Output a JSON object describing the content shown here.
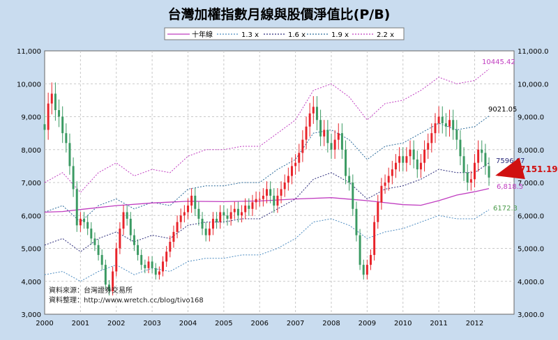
{
  "chart_data": {
    "type": "candlestick",
    "title": "台灣加權指數月線與股價淨值比(P/B)",
    "x_ticks": [
      "2000",
      "2001",
      "2002",
      "2003",
      "2004",
      "2005",
      "2006",
      "2007",
      "2008",
      "2009",
      "2010",
      "2011",
      "2012"
    ],
    "y_ticks_left": [
      "3,000",
      "4,000",
      "5,000",
      "6,000",
      "7,000",
      "8,000",
      "9,000",
      "10,000",
      "11,000"
    ],
    "y_ticks_right": [
      "3,000.0",
      "4,000.0",
      "5,000.0",
      "6,000.0",
      "7,000.0",
      "8,000.0",
      "9,000.0",
      "10,000.0",
      "11,000.0"
    ],
    "ylim": [
      3000,
      11000
    ],
    "xlim": [
      2000,
      2013.1
    ],
    "grid": true,
    "legend": {
      "position": "top",
      "items": [
        {
          "name": "十年線",
          "color": "#c03cc0",
          "style": "solid"
        },
        {
          "name": "1.3 x",
          "color": "#4a8ac0",
          "style": "dotted"
        },
        {
          "name": "1.6 x",
          "color": "#2a2a7a",
          "style": "dotted"
        },
        {
          "name": "1.9 x",
          "color": "#2a6a9a",
          "style": "dotted"
        },
        {
          "name": "2.2 x",
          "color": "#c03cc0",
          "style": "dotted"
        }
      ]
    },
    "ten_year_line": [
      [
        2000,
        6100
      ],
      [
        2000.5,
        6120
      ],
      [
        2001,
        6180
      ],
      [
        2002,
        6300
      ],
      [
        2003,
        6380
      ],
      [
        2004,
        6430
      ],
      [
        2005,
        6420
      ],
      [
        2006,
        6440
      ],
      [
        2007,
        6500
      ],
      [
        2008,
        6540
      ],
      [
        2009,
        6450
      ],
      [
        2010,
        6330
      ],
      [
        2010.5,
        6310
      ],
      [
        2011,
        6450
      ],
      [
        2011.5,
        6620
      ],
      [
        2012,
        6720
      ],
      [
        2012.4,
        6818.5
      ]
    ],
    "pb_bands": [
      {
        "name": "1.3 x",
        "color": "#4a8ac0",
        "points": [
          [
            2000,
            4200
          ],
          [
            2000.5,
            4300
          ],
          [
            2001,
            4000
          ],
          [
            2001.5,
            4300
          ],
          [
            2002,
            4500
          ],
          [
            2002.5,
            4200
          ],
          [
            2003,
            4400
          ],
          [
            2003.5,
            4300
          ],
          [
            2004,
            4600
          ],
          [
            2004.5,
            4700
          ],
          [
            2005,
            4700
          ],
          [
            2005.5,
            4800
          ],
          [
            2006,
            4800
          ],
          [
            2006.5,
            5000
          ],
          [
            2007,
            5300
          ],
          [
            2007.5,
            5800
          ],
          [
            2008,
            5900
          ],
          [
            2008.5,
            5700
          ],
          [
            2009,
            5300
          ],
          [
            2009.5,
            5500
          ],
          [
            2010,
            5600
          ],
          [
            2010.5,
            5800
          ],
          [
            2011,
            6000
          ],
          [
            2011.5,
            5900
          ],
          [
            2012,
            5900
          ],
          [
            2012.4,
            6172.3
          ]
        ]
      },
      {
        "name": "1.6 x",
        "color": "#2a2a7a",
        "points": [
          [
            2000,
            5100
          ],
          [
            2000.5,
            5300
          ],
          [
            2001,
            4900
          ],
          [
            2001.5,
            5300
          ],
          [
            2002,
            5500
          ],
          [
            2002.5,
            5200
          ],
          [
            2003,
            5400
          ],
          [
            2003.5,
            5300
          ],
          [
            2004,
            5700
          ],
          [
            2004.5,
            5800
          ],
          [
            2005,
            5800
          ],
          [
            2005.5,
            5900
          ],
          [
            2006,
            5900
          ],
          [
            2006.5,
            6200
          ],
          [
            2007,
            6500
          ],
          [
            2007.5,
            7100
          ],
          [
            2008,
            7300
          ],
          [
            2008.5,
            7000
          ],
          [
            2009,
            6500
          ],
          [
            2009.5,
            6800
          ],
          [
            2010,
            6900
          ],
          [
            2010.5,
            7100
          ],
          [
            2011,
            7400
          ],
          [
            2011.5,
            7300
          ],
          [
            2012,
            7300
          ],
          [
            2012.4,
            7596.67
          ]
        ]
      },
      {
        "name": "1.9 x",
        "color": "#2a6a9a",
        "points": [
          [
            2000,
            6100
          ],
          [
            2000.5,
            6300
          ],
          [
            2001,
            5800
          ],
          [
            2001.5,
            6300
          ],
          [
            2002,
            6500
          ],
          [
            2002.5,
            6200
          ],
          [
            2003,
            6400
          ],
          [
            2003.5,
            6300
          ],
          [
            2004,
            6800
          ],
          [
            2004.5,
            6900
          ],
          [
            2005,
            6900
          ],
          [
            2005.5,
            7000
          ],
          [
            2006,
            7000
          ],
          [
            2006.5,
            7400
          ],
          [
            2007,
            7700
          ],
          [
            2007.5,
            8500
          ],
          [
            2008,
            8600
          ],
          [
            2008.5,
            8300
          ],
          [
            2009,
            7700
          ],
          [
            2009.5,
            8100
          ],
          [
            2010,
            8200
          ],
          [
            2010.5,
            8500
          ],
          [
            2011,
            8800
          ],
          [
            2011.5,
            8600
          ],
          [
            2012,
            8700
          ],
          [
            2012.4,
            9021.05
          ]
        ]
      },
      {
        "name": "2.2 x",
        "color": "#c03cc0",
        "points": [
          [
            2000,
            7000
          ],
          [
            2000.5,
            7300
          ],
          [
            2001,
            6700
          ],
          [
            2001.5,
            7300
          ],
          [
            2002,
            7600
          ],
          [
            2002.5,
            7200
          ],
          [
            2003,
            7400
          ],
          [
            2003.5,
            7300
          ],
          [
            2004,
            7800
          ],
          [
            2004.5,
            8000
          ],
          [
            2005,
            8000
          ],
          [
            2005.5,
            8100
          ],
          [
            2006,
            8100
          ],
          [
            2006.5,
            8500
          ],
          [
            2007,
            8900
          ],
          [
            2007.5,
            9800
          ],
          [
            2008,
            10000
          ],
          [
            2008.5,
            9600
          ],
          [
            2009,
            8900
          ],
          [
            2009.5,
            9400
          ],
          [
            2010,
            9500
          ],
          [
            2010.5,
            9800
          ],
          [
            2011,
            10200
          ],
          [
            2011.5,
            10000
          ],
          [
            2012,
            10100
          ],
          [
            2012.4,
            10445.42
          ]
        ]
      }
    ],
    "monthly_close": [
      [
        2000.0,
        8600
      ],
      [
        2000.1,
        9400
      ],
      [
        2000.2,
        9700
      ],
      [
        2000.3,
        9200
      ],
      [
        2000.4,
        9000
      ],
      [
        2000.5,
        8500
      ],
      [
        2000.6,
        8200
      ],
      [
        2000.7,
        7500
      ],
      [
        2000.8,
        6800
      ],
      [
        2000.9,
        5700
      ],
      [
        2001.0,
        5900
      ],
      [
        2001.1,
        5800
      ],
      [
        2001.2,
        5600
      ],
      [
        2001.3,
        5300
      ],
      [
        2001.4,
        5100
      ],
      [
        2001.5,
        4800
      ],
      [
        2001.6,
        4500
      ],
      [
        2001.7,
        3900
      ],
      [
        2001.8,
        3700
      ],
      [
        2001.9,
        4300
      ],
      [
        2002.0,
        5000
      ],
      [
        2002.1,
        5600
      ],
      [
        2002.2,
        6100
      ],
      [
        2002.3,
        5900
      ],
      [
        2002.4,
        5400
      ],
      [
        2002.5,
        5100
      ],
      [
        2002.6,
        4800
      ],
      [
        2002.7,
        4500
      ],
      [
        2002.8,
        4400
      ],
      [
        2002.9,
        4600
      ],
      [
        2003.0,
        4400
      ],
      [
        2003.1,
        4200
      ],
      [
        2003.2,
        4300
      ],
      [
        2003.3,
        4600
      ],
      [
        2003.4,
        4900
      ],
      [
        2003.5,
        5200
      ],
      [
        2003.6,
        5500
      ],
      [
        2003.7,
        5800
      ],
      [
        2003.8,
        6000
      ],
      [
        2003.9,
        6100
      ],
      [
        2004.0,
        6300
      ],
      [
        2004.1,
        6600
      ],
      [
        2004.2,
        6200
      ],
      [
        2004.3,
        5900
      ],
      [
        2004.4,
        5600
      ],
      [
        2004.5,
        5400
      ],
      [
        2004.6,
        5600
      ],
      [
        2004.7,
        5900
      ],
      [
        2004.8,
        5800
      ],
      [
        2004.9,
        6100
      ],
      [
        2005.0,
        6000
      ],
      [
        2005.1,
        5900
      ],
      [
        2005.2,
        6100
      ],
      [
        2005.3,
        6200
      ],
      [
        2005.4,
        6000
      ],
      [
        2005.5,
        6100
      ],
      [
        2005.6,
        6300
      ],
      [
        2005.7,
        6200
      ],
      [
        2005.8,
        6400
      ],
      [
        2005.9,
        6500
      ],
      [
        2006.0,
        6500
      ],
      [
        2006.1,
        6600
      ],
      [
        2006.2,
        6800
      ],
      [
        2006.3,
        6600
      ],
      [
        2006.4,
        6300
      ],
      [
        2006.5,
        6600
      ],
      [
        2006.6,
        6800
      ],
      [
        2006.7,
        7000
      ],
      [
        2006.8,
        7200
      ],
      [
        2006.9,
        7500
      ],
      [
        2007.0,
        7600
      ],
      [
        2007.1,
        7900
      ],
      [
        2007.2,
        8300
      ],
      [
        2007.3,
        8700
      ],
      [
        2007.4,
        9100
      ],
      [
        2007.5,
        9300
      ],
      [
        2007.6,
        8900
      ],
      [
        2007.7,
        8400
      ],
      [
        2007.8,
        8600
      ],
      [
        2007.9,
        8200
      ],
      [
        2008.0,
        8000
      ],
      [
        2008.1,
        8300
      ],
      [
        2008.2,
        8500
      ],
      [
        2008.3,
        8000
      ],
      [
        2008.4,
        7200
      ],
      [
        2008.5,
        7000
      ],
      [
        2008.6,
        6200
      ],
      [
        2008.7,
        5400
      ],
      [
        2008.8,
        4500
      ],
      [
        2008.9,
        4200
      ],
      [
        2009.0,
        4500
      ],
      [
        2009.1,
        4800
      ],
      [
        2009.2,
        5800
      ],
      [
        2009.3,
        6400
      ],
      [
        2009.4,
        6900
      ],
      [
        2009.5,
        7000
      ],
      [
        2009.6,
        7200
      ],
      [
        2009.7,
        7400
      ],
      [
        2009.8,
        7600
      ],
      [
        2009.9,
        7800
      ],
      [
        2010.0,
        7600
      ],
      [
        2010.1,
        7800
      ],
      [
        2010.2,
        8000
      ],
      [
        2010.3,
        7700
      ],
      [
        2010.4,
        7400
      ],
      [
        2010.5,
        7600
      ],
      [
        2010.6,
        8000
      ],
      [
        2010.7,
        8200
      ],
      [
        2010.8,
        8500
      ],
      [
        2010.9,
        8800
      ],
      [
        2011.0,
        9000
      ],
      [
        2011.1,
        8800
      ],
      [
        2011.2,
        8700
      ],
      [
        2011.3,
        8900
      ],
      [
        2011.4,
        8600
      ],
      [
        2011.5,
        8300
      ],
      [
        2011.6,
        7800
      ],
      [
        2011.7,
        7300
      ],
      [
        2011.8,
        7000
      ],
      [
        2011.9,
        7100
      ],
      [
        2012.0,
        7600
      ],
      [
        2012.1,
        8000
      ],
      [
        2012.2,
        7900
      ],
      [
        2012.3,
        7500
      ],
      [
        2012.4,
        7151.19
      ]
    ],
    "annotations": [
      {
        "text": "10445.42",
        "color": "#c03cc0"
      },
      {
        "text": "9021.05",
        "color": "#000000"
      },
      {
        "text": "7596.67",
        "color": "#2a2a7a"
      },
      {
        "text": "6,818.5",
        "color": "#c03cc0"
      },
      {
        "text": "6172.3",
        "color": "#4a9a4a"
      },
      {
        "text": "7151.19",
        "color": "#d01010"
      }
    ],
    "source_lines": [
      "資料來源：台灣證券交易所",
      "資料整理：http://www.wretch.cc/blog/tivo168"
    ]
  }
}
